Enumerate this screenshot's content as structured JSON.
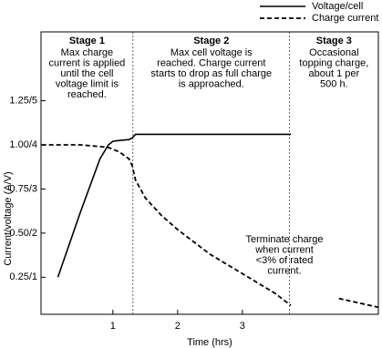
{
  "chart_data": {
    "type": "line",
    "x_label": "Time (hrs)",
    "y_label": "Current/voltage (A/V)",
    "x": [
      -0.1,
      0.15,
      0.5,
      0.8,
      0.93,
      1.0,
      1.1,
      1.25,
      1.3,
      1.35,
      1.5,
      1.75,
      2.0,
      2.5,
      3.0,
      3.5,
      3.75,
      4.0,
      4.49,
      5.1
    ],
    "series": [
      {
        "name": "Voltage/cell",
        "color": "#000000",
        "dash": "solid",
        "values": [
          null,
          0.25,
          0.62,
          0.92,
          1.0,
          1.02,
          1.025,
          1.03,
          1.04,
          1.06,
          1.06,
          1.06,
          1.06,
          1.06,
          1.06,
          1.06,
          1.06,
          null,
          null,
          null
        ]
      },
      {
        "name": "Charge current",
        "color": "#000000",
        "dash": "dashed",
        "values": [
          1.0,
          1.0,
          1.0,
          0.99,
          0.985,
          0.975,
          0.96,
          0.92,
          0.88,
          0.8,
          0.7,
          0.6,
          0.52,
          0.38,
          0.27,
          0.16,
          0.09,
          null,
          0.13,
          0.08
        ]
      }
    ],
    "xlim": [
      -0.11,
      5.1
    ],
    "xticks": [
      1,
      2,
      3
    ],
    "ylim": [
      0.04,
      1.64
    ],
    "yticks": [
      {
        "value": 0.25,
        "label": "0.25/1"
      },
      {
        "value": 0.5,
        "label": "0.50/2"
      },
      {
        "value": 0.75,
        "label": "0.75/3"
      },
      {
        "value": 1.0,
        "label": "1.00/4"
      },
      {
        "value": 1.25,
        "label": "1.25/5"
      }
    ],
    "stage_boundaries": [
      1.31,
      3.73
    ],
    "stages": [
      {
        "title": "Stage 1",
        "lines": [
          "Max charge",
          "current is applied",
          "until the cell",
          "voltage limit is",
          "reached."
        ]
      },
      {
        "title": "Stage 2",
        "lines": [
          "Max cell voltage is",
          "reached. Charge current",
          "starts to drop as full charge",
          "is approached."
        ]
      },
      {
        "title": "Stage 3",
        "lines": [
          "Occasional",
          "topping charge,",
          "about 1 per",
          "500 h."
        ]
      }
    ],
    "annotation": [
      "Terminate charge",
      "when current",
      "<3% of rated",
      "current."
    ],
    "legend": "upper right",
    "grid": false
  }
}
